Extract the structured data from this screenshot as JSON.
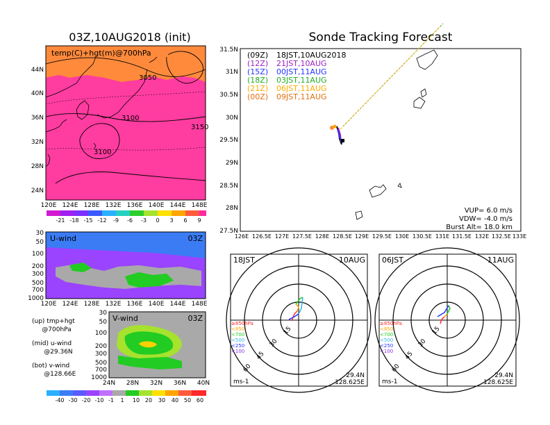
{
  "init_panel": {
    "title": "03Z,10AUG2018 (init)",
    "overlay_label": "temp(C)+hgt(m)@700hPa",
    "lat_ticks": [
      "44N",
      "40N",
      "36N",
      "32N",
      "28N",
      "24N"
    ],
    "lon_ticks": [
      "120E",
      "124E",
      "128E",
      "132E",
      "136E",
      "140E",
      "144E",
      "148E"
    ],
    "contour_labels": [
      "3050",
      "3100",
      "3150",
      "3100"
    ],
    "colorbar_labels": [
      "-21",
      "-18",
      "-15",
      "-12",
      "-9",
      "-6",
      "-3",
      "0",
      "3",
      "6",
      "9"
    ],
    "colors": {
      "warm_pink": "#ff3ca0",
      "orange": "#ff8a3c",
      "light_orange": "#ff9b4a"
    }
  },
  "uwind_panel": {
    "title": "U-wind",
    "time": "03Z",
    "p_ticks": [
      "30",
      "50",
      "100",
      "200",
      "300",
      "500",
      "700",
      "1000"
    ],
    "lon_ticks": [
      "120E",
      "124E",
      "128E",
      "132E",
      "136E",
      "140E",
      "144E",
      "148E"
    ],
    "colors": {
      "blue": "#3b7cf5",
      "purple": "#9a44ff",
      "gray": "#a9a9a9",
      "green": "#22cc22"
    }
  },
  "vwind_panel": {
    "title": "V-wind",
    "time": "03Z",
    "p_ticks": [
      "30",
      "50",
      "100",
      "200",
      "300",
      "500",
      "700",
      "1000"
    ],
    "lat_ticks": [
      "24N",
      "28N",
      "32N",
      "36N",
      "40N"
    ]
  },
  "notes": [
    "(up) tmp+hgt",
    "     @700hPa",
    "(mid) u-wind",
    "      @29.36N",
    "(bot) v-wind",
    "      @128.66E"
  ],
  "wind_colorbar_labels": [
    "-40",
    "-30",
    "-20",
    "-10",
    "-1",
    "1",
    "10",
    "20",
    "30",
    "40",
    "50",
    "60"
  ],
  "tracking": {
    "title": "Sonde Tracking Forecast",
    "legend": [
      {
        "code": "(09Z)",
        "time": "18JST,10AUG2018",
        "color": "#000000"
      },
      {
        "code": "(12Z)",
        "time": "21JST,10AUG",
        "color": "#9b1fc2"
      },
      {
        "code": "(15Z)",
        "time": "00JST,11AUG",
        "color": "#2233ff"
      },
      {
        "code": "(18Z)",
        "time": "03JST,11AUG",
        "color": "#22aa22"
      },
      {
        "code": "(21Z)",
        "time": "06JST,11AUG",
        "color": "#ffaa00"
      },
      {
        "code": "(00Z)",
        "time": "09JST,11AUG",
        "color": "#e07010"
      }
    ],
    "lat_ticks": [
      "31.5N",
      "31N",
      "30.5N",
      "30N",
      "29.5N",
      "29N",
      "28.5N",
      "28N",
      "27.5N"
    ],
    "lon_ticks": [
      "126E",
      "126.5E",
      "127E",
      "127.5E",
      "128E",
      "128.5E",
      "129E",
      "129.5E",
      "130E",
      "130.5E",
      "131E",
      "131.5E",
      "132E",
      "132.5E",
      "133E"
    ],
    "params": [
      "VUP=  6.0 m/s",
      "VDW= -4.0 m/s",
      "Burst Alt= 18.0 km"
    ]
  },
  "hodo_left": {
    "time": "18JST",
    "date": "10AUG",
    "rings": [
      "15",
      "30",
      "45",
      "60"
    ],
    "legend": [
      "≥850hPa",
      "<850",
      "<700",
      "<500",
      "<250",
      "<100"
    ],
    "legend_colors": [
      "#ff2a2a",
      "#ffa500",
      "#22cc22",
      "#33b5e5",
      "#2233ff",
      "#8a2be2"
    ],
    "unit": "ms-1",
    "lat": "29.4N",
    "lon": "128.625E"
  },
  "hodo_right": {
    "time": "06JST",
    "date": "11AUG",
    "rings": [
      "15",
      "30",
      "45",
      "60"
    ],
    "legend": [
      "≥850hPa",
      "<850",
      "<700",
      "<500",
      "<250",
      "<100"
    ],
    "legend_colors": [
      "#ff2a2a",
      "#ffa500",
      "#22cc22",
      "#33b5e5",
      "#2233ff",
      "#8a2be2"
    ],
    "unit": "ms-1",
    "lat": "29.4N",
    "lon": "128.625E"
  }
}
